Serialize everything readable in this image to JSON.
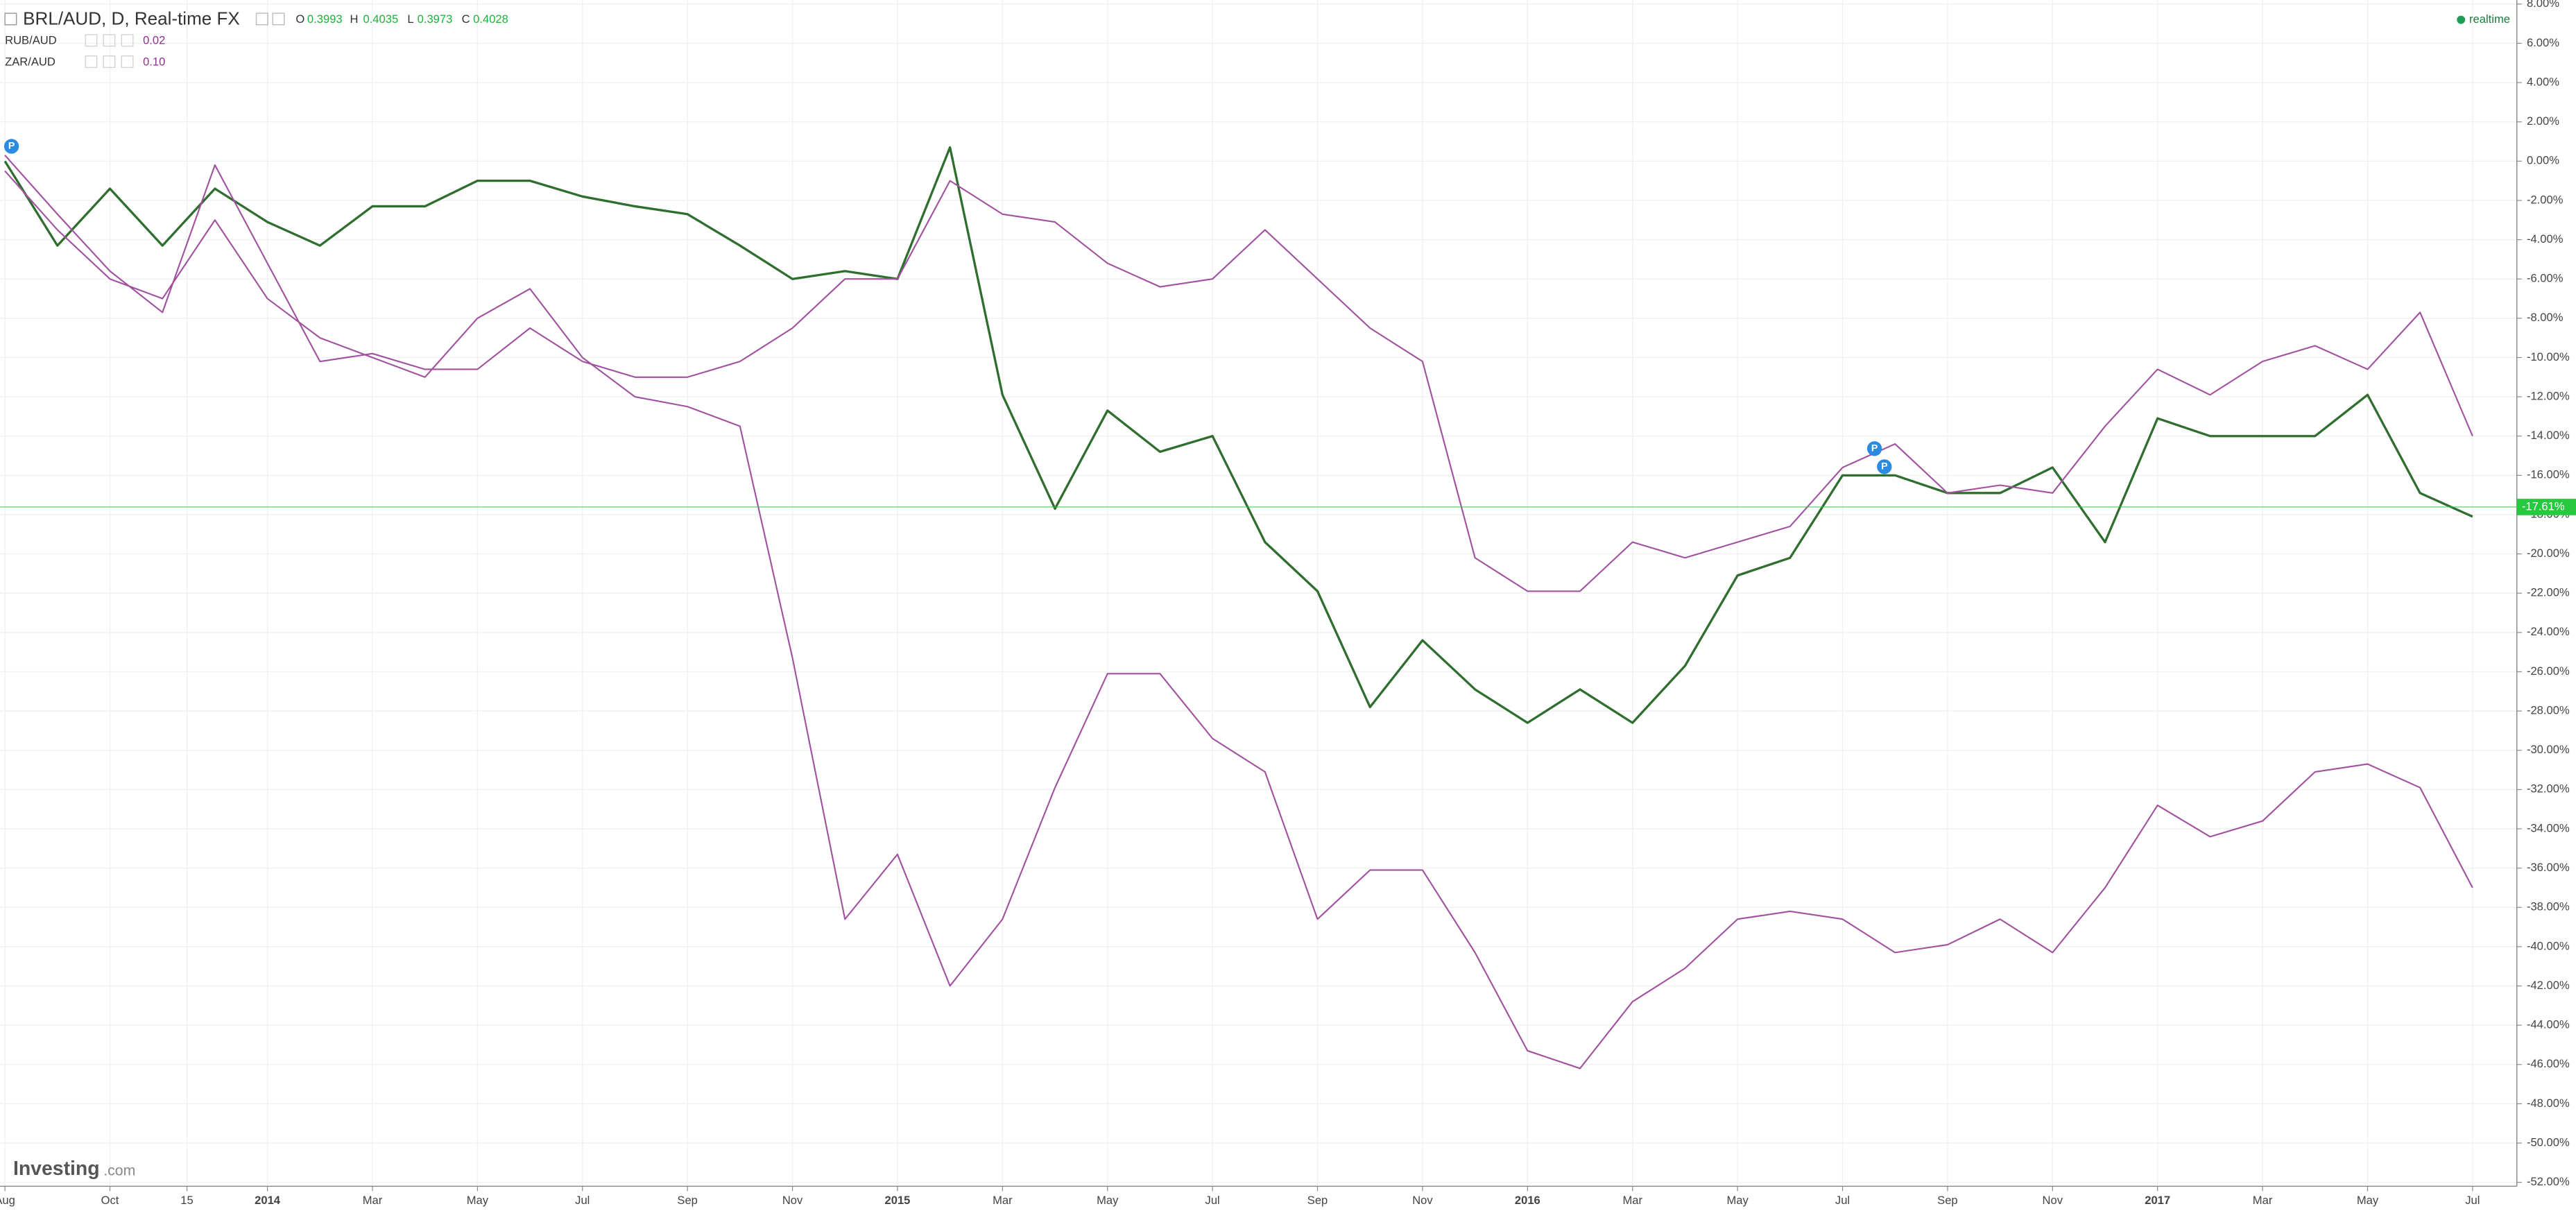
{
  "chart_data": {
    "type": "line",
    "title": "BRL/AUD, D, Real-time FX",
    "ohlc": {
      "o_label": "O",
      "open": 0.3993,
      "h_label": "H",
      "high": 0.4035,
      "l_label": "L",
      "low": 0.3973,
      "c_label": "C",
      "close": 0.4028
    },
    "legend_values": [
      "0.02",
      "0.10"
    ],
    "status": "realtime",
    "logo_name": "Investing",
    "logo_suffix": ".com",
    "event_marker": "P",
    "price_line": {
      "value": -17.61,
      "label": "-17.61%",
      "color": "#27c93f"
    },
    "x": [
      "2013-08",
      "2013-09",
      "2013-10",
      "2013-11",
      "2013-12",
      "2014-01",
      "2014-02",
      "2014-03",
      "2014-04",
      "2014-05",
      "2014-06",
      "2014-07",
      "2014-08",
      "2014-09",
      "2014-10",
      "2014-11",
      "2014-12",
      "2015-01",
      "2015-02",
      "2015-03",
      "2015-04",
      "2015-05",
      "2015-06",
      "2015-07",
      "2015-08",
      "2015-09",
      "2015-10",
      "2015-11",
      "2015-12",
      "2016-01",
      "2016-02",
      "2016-03",
      "2016-04",
      "2016-05",
      "2016-06",
      "2016-07",
      "2016-08",
      "2016-09",
      "2016-10",
      "2016-11",
      "2016-12",
      "2017-01",
      "2017-02",
      "2017-03",
      "2017-04",
      "2017-05",
      "2017-06",
      "2017-07"
    ],
    "series": [
      {
        "name": "BRL/AUD",
        "color": "#2f6e2f",
        "values": [
          0,
          -4.3,
          -1.4,
          -4.3,
          -1.4,
          -3.1,
          -4.3,
          -2.3,
          -2.3,
          -1,
          -1,
          -1.8,
          -2.3,
          -2.7,
          -4.3,
          -6,
          -5.6,
          -6,
          0.7,
          -11.9,
          -17.7,
          -12.7,
          -14.8,
          -14,
          -19.4,
          -21.9,
          -27.8,
          -24.4,
          -26.9,
          -28.6,
          -26.9,
          -28.6,
          -25.7,
          -21.1,
          -20.2,
          -16,
          -16,
          -16.9,
          -16.9,
          -15.6,
          -19.4,
          -13.1,
          -14,
          -14,
          -14,
          -11.9,
          -16.9,
          -18.1
        ]
      },
      {
        "name": "RUB/AUD",
        "color": "#a0529f",
        "values": [
          -0.5,
          -3.5,
          -6,
          -7,
          -3,
          -7,
          -9,
          -10,
          -11,
          -8,
          -6.5,
          -10,
          -12,
          -12.5,
          -13.5,
          -25.3,
          -38.6,
          -35.3,
          -42,
          -38.6,
          -31.9,
          -26.1,
          -26.1,
          -29.4,
          -31.1,
          -38.6,
          -36.1,
          -36.1,
          -40.3,
          -45.3,
          -46.2,
          -42.8,
          -41.1,
          -38.6,
          -38.2,
          -38.6,
          -40.3,
          -39.9,
          -38.6,
          -40.3,
          -37,
          -32.8,
          -34.4,
          -33.6,
          -31.1,
          -30.7,
          -31.9,
          -37
        ]
      },
      {
        "name": "ZAR/AUD",
        "color": "#a0529f",
        "values": [
          0.3,
          -2.7,
          -5.6,
          -7.7,
          -0.2,
          -5.2,
          -10.2,
          -9.8,
          -10.6,
          -10.6,
          -8.5,
          -10.2,
          -11,
          -11,
          -10.2,
          -8.5,
          -6,
          -6,
          -1,
          -2.7,
          -3.1,
          -5.2,
          -6.4,
          -6,
          -3.5,
          -6,
          -8.5,
          -10.2,
          -20.2,
          -21.9,
          -21.9,
          -19.4,
          -20.2,
          -19.4,
          -18.6,
          -15.6,
          -14.4,
          -16.9,
          -16.5,
          -16.9,
          -13.5,
          -10.6,
          -11.9,
          -10.2,
          -9.4,
          -10.6,
          -7.7,
          -14
        ]
      }
    ],
    "xlim": [
      "2013-08",
      "2017-08"
    ],
    "xticks": [
      {
        "value": "2013-08",
        "label": "Aug"
      },
      {
        "value": "2013-10",
        "label": "Oct"
      },
      {
        "value": "2013-11-15",
        "label": "15"
      },
      {
        "value": "2014-01",
        "label": "2014"
      },
      {
        "value": "2014-03",
        "label": "Mar"
      },
      {
        "value": "2014-05",
        "label": "May"
      },
      {
        "value": "2014-07",
        "label": "Jul"
      },
      {
        "value": "2014-09",
        "label": "Sep"
      },
      {
        "value": "2014-11",
        "label": "Nov"
      },
      {
        "value": "2015-01",
        "label": "2015"
      },
      {
        "value": "2015-03",
        "label": "Mar"
      },
      {
        "value": "2015-05",
        "label": "May"
      },
      {
        "value": "2015-07",
        "label": "Jul"
      },
      {
        "value": "2015-09",
        "label": "Sep"
      },
      {
        "value": "2015-11",
        "label": "Nov"
      },
      {
        "value": "2016-01",
        "label": "2016"
      },
      {
        "value": "2016-03",
        "label": "Mar"
      },
      {
        "value": "2016-05",
        "label": "May"
      },
      {
        "value": "2016-07",
        "label": "Jul"
      },
      {
        "value": "2016-09",
        "label": "Sep"
      },
      {
        "value": "2016-11",
        "label": "Nov"
      },
      {
        "value": "2017-01",
        "label": "2017"
      },
      {
        "value": "2017-03",
        "label": "Mar"
      },
      {
        "value": "2017-05",
        "label": "May"
      },
      {
        "value": "2017-07",
        "label": "Jul"
      }
    ],
    "ylim": [
      -52.2,
      8.2
    ],
    "yticks": [
      {
        "value": 8,
        "label": "8.00%"
      },
      {
        "value": 6,
        "label": "6.00%"
      },
      {
        "value": 4,
        "label": "4.00%"
      },
      {
        "value": 2,
        "label": "2.00%"
      },
      {
        "value": 0,
        "label": "0.00%"
      },
      {
        "value": -2,
        "label": "-2.00%"
      },
      {
        "value": -4,
        "label": "-4.00%"
      },
      {
        "value": -6,
        "label": "-6.00%"
      },
      {
        "value": -8,
        "label": "-8.00%"
      },
      {
        "value": -10,
        "label": "-10.00%"
      },
      {
        "value": -12,
        "label": "-12.00%"
      },
      {
        "value": -14,
        "label": "-14.00%"
      },
      {
        "value": -16,
        "label": "-16.00%"
      },
      {
        "value": -18,
        "label": "-18.00%"
      },
      {
        "value": -20,
        "label": "-20.00%"
      },
      {
        "value": -22,
        "label": "-22.00%"
      },
      {
        "value": -24,
        "label": "-24.00%"
      },
      {
        "value": -26,
        "label": "-26.00%"
      },
      {
        "value": -28,
        "label": "-28.00%"
      },
      {
        "value": -30,
        "label": "-30.00%"
      },
      {
        "value": -32,
        "label": "-32.00%"
      },
      {
        "value": -34,
        "label": "-34.00%"
      },
      {
        "value": -36,
        "label": "-36.00%"
      },
      {
        "value": -38,
        "label": "-38.00%"
      },
      {
        "value": -40,
        "label": "-40.00%"
      },
      {
        "value": -42,
        "label": "-42.00%"
      },
      {
        "value": -44,
        "label": "-44.00%"
      },
      {
        "value": -46,
        "label": "-46.00%"
      },
      {
        "value": -48,
        "label": "-48.00%"
      },
      {
        "value": -50,
        "label": "-50.00%"
      },
      {
        "value": -52,
        "label": "-52.00%"
      }
    ],
    "grid": true
  }
}
